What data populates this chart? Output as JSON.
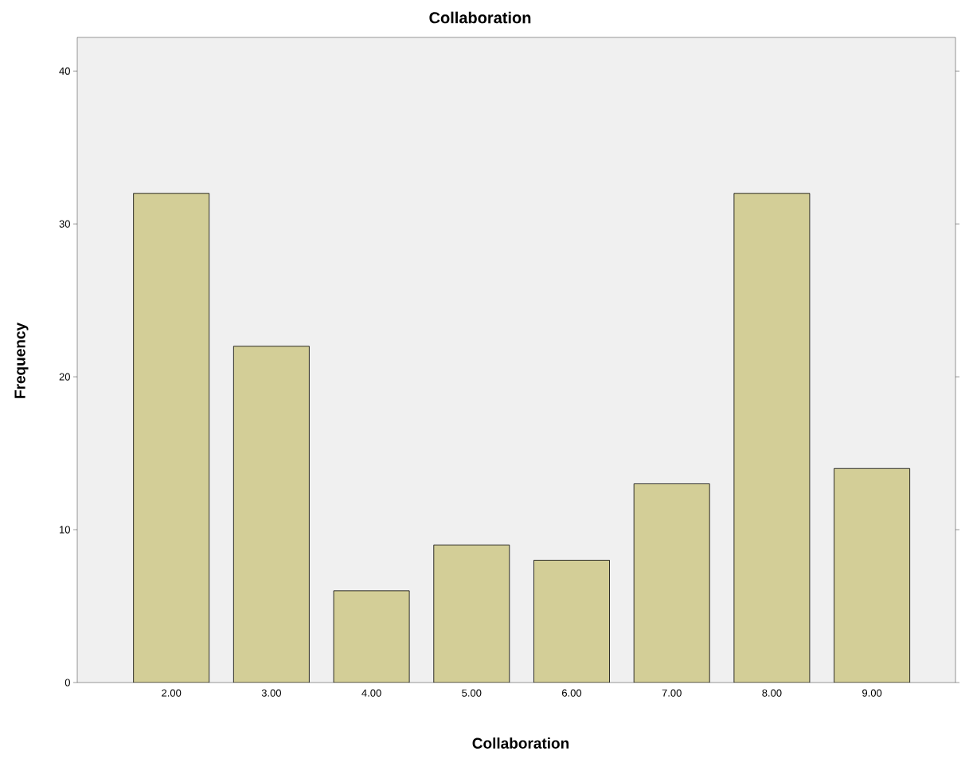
{
  "chart_data": {
    "type": "bar",
    "title": "Collaboration",
    "xlabel": "Collaboration",
    "ylabel": "Frequency",
    "categories": [
      "2.00",
      "3.00",
      "4.00",
      "5.00",
      "6.00",
      "7.00",
      "8.00",
      "9.00"
    ],
    "values": [
      32,
      22,
      6,
      9,
      8,
      13,
      32,
      14
    ],
    "color": "#d3ce97",
    "ylim": [
      0,
      42.2
    ],
    "yticks": [
      0,
      10,
      20,
      30,
      40
    ]
  }
}
